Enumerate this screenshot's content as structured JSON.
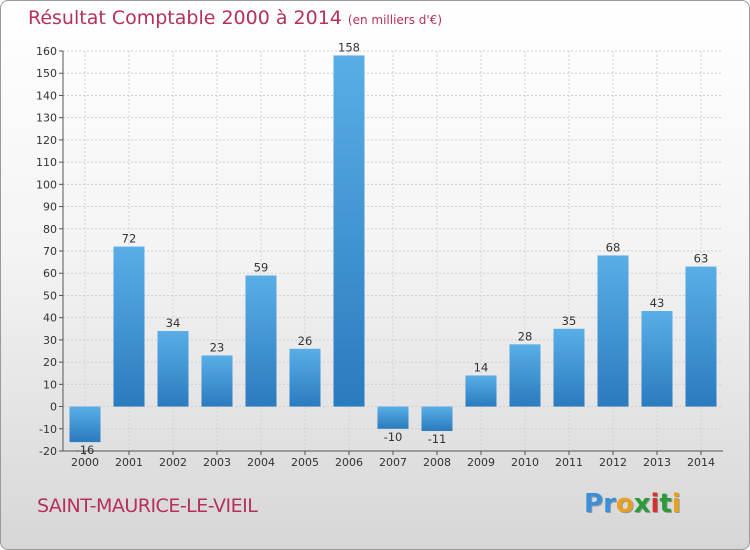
{
  "header": {
    "title": "Résultat Comptable 2000 à 2014",
    "subtitle": "(en milliers d'€)"
  },
  "footer": {
    "commune": "SAINT-MAURICE-LE-VIEIL",
    "logo_letters": [
      "P",
      "r",
      "o",
      "x",
      "i",
      "t",
      "i"
    ],
    "logo_colors": [
      "#3a8fd8",
      "#3a8fd8",
      "#e8a020",
      "#2a9a3a",
      "#d43030",
      "#2a9a3a",
      "#e8a020"
    ]
  },
  "colors": {
    "bar_top": "#5aaee6",
    "bar_bottom": "#2a7bbf",
    "title": "#b5305a"
  },
  "chart_data": {
    "type": "bar",
    "title": "Résultat Comptable 2000 à 2014",
    "subtitle": "(en milliers d'€)",
    "xlabel": "",
    "ylabel": "",
    "ylim": [
      -20,
      160
    ],
    "yticks": [
      -20,
      -10,
      0,
      10,
      20,
      30,
      40,
      50,
      60,
      70,
      80,
      90,
      100,
      110,
      120,
      130,
      140,
      150,
      160
    ],
    "grid": true,
    "categories": [
      "2000",
      "2001",
      "2002",
      "2003",
      "2004",
      "2005",
      "2006",
      "2007",
      "2008",
      "2009",
      "2010",
      "2011",
      "2012",
      "2013",
      "2014"
    ],
    "values": [
      -16,
      72,
      34,
      23,
      59,
      26,
      158,
      -10,
      -11,
      14,
      28,
      35,
      68,
      43,
      63
    ],
    "labels": [
      "-16",
      "72",
      "34",
      "23",
      "59",
      "26",
      "158",
      "-10",
      "-11",
      "14",
      "28",
      "35",
      "68",
      "43",
      "63"
    ]
  }
}
